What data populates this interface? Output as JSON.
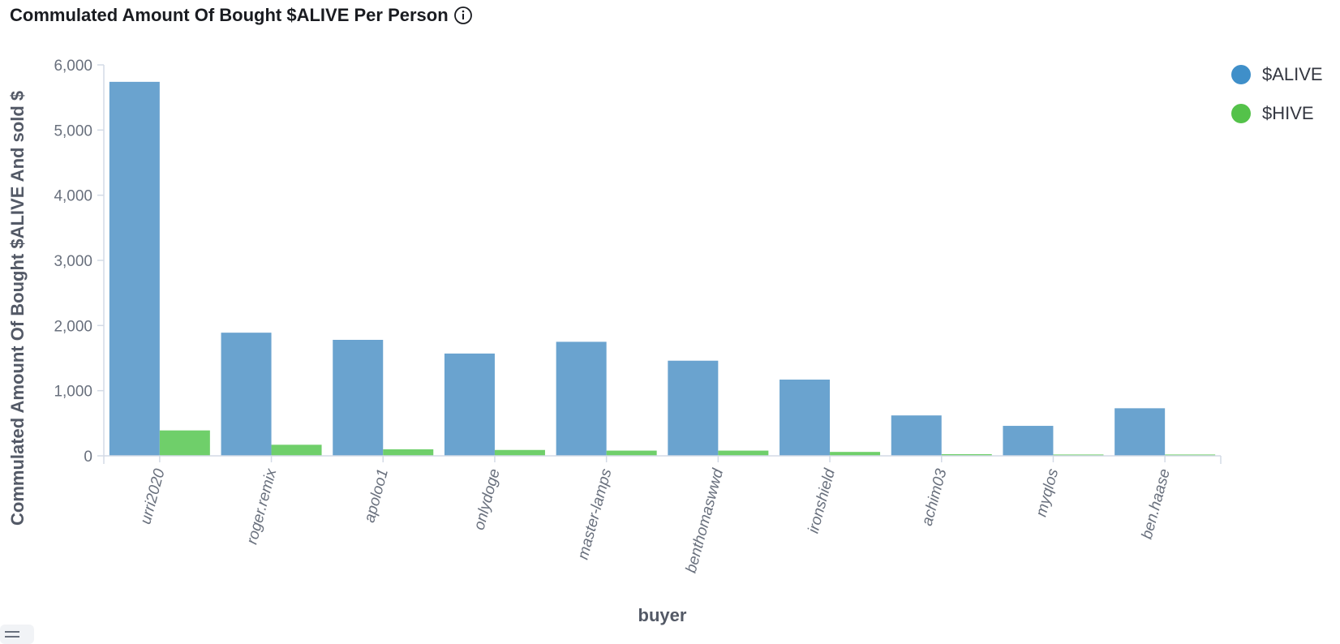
{
  "title": "Commulated Amount Of Bought $ALIVE Per Person",
  "icons": {
    "info": "info-icon",
    "list": "list-icon"
  },
  "chart_data": {
    "type": "bar",
    "xlabel": "buyer",
    "ylabel": "Commulated Amount Of Bought $ALIVE And sold $",
    "ylim": [
      0,
      6000
    ],
    "yticks": [
      0,
      1000,
      2000,
      3000,
      4000,
      5000,
      6000
    ],
    "ytick_labels": [
      "0",
      "1,000",
      "2,000",
      "3,000",
      "4,000",
      "5,000",
      "6,000"
    ],
    "categories": [
      "urri2020",
      "roger.remix",
      "apoloo1",
      "onlydoge",
      "master-lamps",
      "benthomaswwd",
      "ironshield",
      "achim03",
      "myqlos",
      "ben.haase"
    ],
    "series": [
      {
        "name": "$ALIVE",
        "color": "#6aa3cf",
        "legend_color": "#3f8fc9",
        "values": [
          5740,
          1890,
          1780,
          1570,
          1750,
          1460,
          1170,
          620,
          460,
          730
        ]
      },
      {
        "name": "$HIVE",
        "color": "#6fcf6a",
        "legend_color": "#54c24a",
        "values": [
          390,
          170,
          100,
          90,
          80,
          80,
          60,
          25,
          20,
          20
        ]
      }
    ],
    "grid": false,
    "legend": "top-right"
  }
}
